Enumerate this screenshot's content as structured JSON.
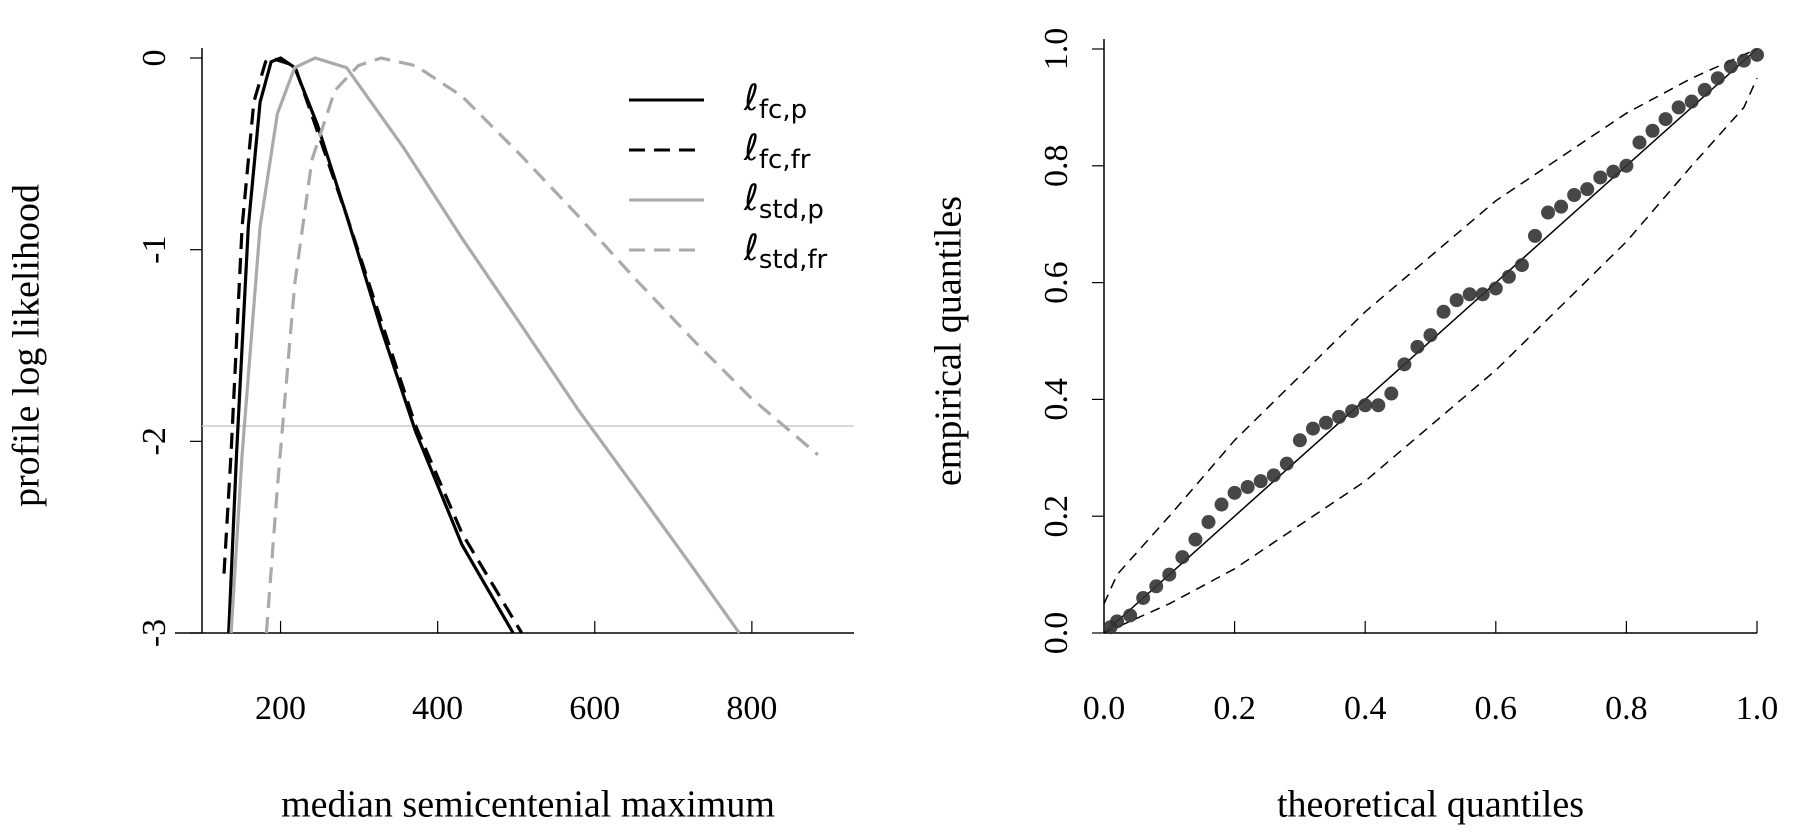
{
  "chart_data": [
    {
      "type": "line",
      "xlabel": "median semicentenial maximum",
      "ylabel": "profile log likelihood",
      "xlim": [
        100,
        930
      ],
      "ylim": [
        -3,
        0
      ],
      "xticks": [
        200,
        400,
        600,
        800
      ],
      "yticks": [
        -3,
        -2,
        -1,
        0
      ],
      "hline": -1.92,
      "hline_color": "#cccccc",
      "legend": "top-right",
      "series": [
        {
          "name": "ℓfc,p",
          "color": "#000000",
          "dash": false,
          "x": [
            134,
            144,
            159,
            174,
            188,
            200,
            218,
            247,
            284,
            328,
            372,
            431,
            496
          ],
          "values": [
            -3,
            -2.06,
            -0.88,
            -0.23,
            -0.02,
            0,
            -0.05,
            -0.35,
            -0.82,
            -1.41,
            -1.95,
            -2.54,
            -3
          ]
        },
        {
          "name": "ℓfc,fr",
          "color": "#000000",
          "dash": true,
          "x": [
            128,
            137,
            151,
            166,
            181,
            188,
            218,
            284,
            372,
            431,
            507
          ],
          "values": [
            -2.69,
            -2.06,
            -0.88,
            -0.23,
            -0.02,
            0,
            -0.04,
            -0.82,
            -1.92,
            -2.48,
            -3
          ]
        },
        {
          "name": "ℓstd,p",
          "color": "#aaaaaa",
          "dash": false,
          "x": [
            137,
            151,
            174,
            196,
            218,
            244,
            284,
            357,
            431,
            504,
            578,
            651,
            725,
            784
          ],
          "values": [
            -3,
            -2.07,
            -0.88,
            -0.29,
            -0.05,
            0,
            -0.05,
            -0.47,
            -0.94,
            -1.38,
            -1.83,
            -2.24,
            -2.66,
            -3
          ]
        },
        {
          "name": "ℓstd,fr",
          "color": "#aaaaaa",
          "dash": true,
          "x": [
            182,
            196,
            218,
            240,
            269,
            299,
            328,
            372,
            431,
            504,
            578,
            651,
            725,
            798,
            884
          ],
          "values": [
            -3,
            -2.24,
            -1.18,
            -0.53,
            -0.17,
            -0.04,
            0,
            -0.04,
            -0.2,
            -0.5,
            -0.82,
            -1.15,
            -1.47,
            -1.77,
            -2.07
          ]
        }
      ]
    },
    {
      "type": "scatter",
      "xlabel": "theoretical quantiles",
      "ylabel": "empirical quantiles",
      "xlim": [
        0,
        1
      ],
      "ylim": [
        0,
        1
      ],
      "xticks": [
        {
          "value": 0,
          "label": "0.0"
        },
        0.2,
        0.4,
        0.6,
        0.8,
        {
          "value": 1,
          "label": "1.0"
        }
      ],
      "yticks": [
        {
          "value": 0,
          "label": "0.0"
        },
        0.2,
        0.4,
        0.6,
        0.8,
        {
          "value": 1,
          "label": "1.0"
        }
      ],
      "color": "#333333",
      "x": [
        0.01,
        0.02,
        0.04,
        0.06,
        0.08,
        0.1,
        0.12,
        0.14,
        0.16,
        0.18,
        0.2,
        0.22,
        0.24,
        0.26,
        0.28,
        0.3,
        0.32,
        0.34,
        0.36,
        0.38,
        0.4,
        0.42,
        0.44,
        0.46,
        0.48,
        0.5,
        0.52,
        0.54,
        0.56,
        0.58,
        0.6,
        0.62,
        0.64,
        0.66,
        0.68,
        0.7,
        0.72,
        0.74,
        0.76,
        0.78,
        0.8,
        0.82,
        0.84,
        0.86,
        0.88,
        0.9,
        0.92,
        0.94,
        0.96,
        0.98,
        1.0
      ],
      "values": [
        0.01,
        0.02,
        0.03,
        0.06,
        0.08,
        0.1,
        0.13,
        0.16,
        0.19,
        0.22,
        0.24,
        0.25,
        0.26,
        0.27,
        0.29,
        0.33,
        0.35,
        0.36,
        0.37,
        0.38,
        0.39,
        0.39,
        0.41,
        0.46,
        0.49,
        0.51,
        0.55,
        0.57,
        0.58,
        0.58,
        0.59,
        0.61,
        0.63,
        0.68,
        0.72,
        0.73,
        0.75,
        0.76,
        0.78,
        0.79,
        0.8,
        0.84,
        0.86,
        0.88,
        0.9,
        0.91,
        0.93,
        0.95,
        0.97,
        0.98,
        0.99
      ],
      "lines": [
        {
          "color": "#000000",
          "dash": false,
          "x": [
            0,
            1
          ],
          "values": [
            0,
            1
          ]
        },
        {
          "color": "#000000",
          "dash": true,
          "x": [
            0,
            0.02,
            0.1,
            0.2,
            0.4,
            0.6,
            0.8,
            0.9,
            1.0
          ],
          "values": [
            0.05,
            0.1,
            0.2,
            0.33,
            0.55,
            0.74,
            0.89,
            0.95,
            1.0
          ]
        },
        {
          "color": "#000000",
          "dash": true,
          "x": [
            0,
            0.1,
            0.2,
            0.4,
            0.6,
            0.8,
            0.9,
            0.98,
            1.0
          ],
          "values": [
            0,
            0.05,
            0.11,
            0.26,
            0.45,
            0.67,
            0.8,
            0.9,
            0.95
          ]
        }
      ]
    }
  ]
}
